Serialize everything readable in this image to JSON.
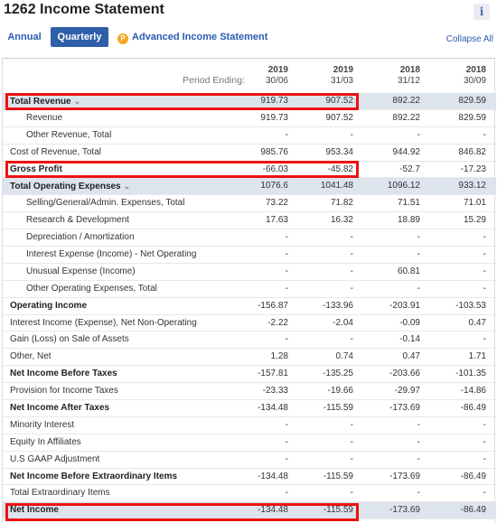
{
  "header": {
    "title": "1262 Income Statement",
    "info_label": "i"
  },
  "tabs": {
    "annual": "Annual",
    "quarterly": "Quarterly",
    "advanced": "Advanced Income Statement",
    "advanced_icon_glyph": "P",
    "collapse_all": "Collapse All"
  },
  "columns": {
    "period_label": "Period Ending:",
    "periods": [
      {
        "year": "2019",
        "date": "30/06"
      },
      {
        "year": "2019",
        "date": "31/03"
      },
      {
        "year": "2018",
        "date": "31/12"
      },
      {
        "year": "2018",
        "date": "30/09"
      }
    ]
  },
  "rows": [
    {
      "label": "Total Revenue",
      "values": [
        "919.73",
        "907.52",
        "892.22",
        "829.59"
      ],
      "style": "bold",
      "shaded": true,
      "expandable": true
    },
    {
      "label": "Revenue",
      "values": [
        "919.73",
        "907.52",
        "892.22",
        "829.59"
      ],
      "style": "indent"
    },
    {
      "label": "Other Revenue, Total",
      "values": [
        "-",
        "-",
        "-",
        "-"
      ],
      "style": "indent"
    },
    {
      "label": "Cost of Revenue, Total",
      "values": [
        "985.76",
        "953.34",
        "944.92",
        "846.82"
      ],
      "style": "normal"
    },
    {
      "label": "Gross Profit",
      "values": [
        "-66.03",
        "-45.82",
        "-52.7",
        "-17.23"
      ],
      "style": "bold"
    },
    {
      "label": "Total Operating Expenses",
      "values": [
        "1076.6",
        "1041.48",
        "1096.12",
        "933.12"
      ],
      "style": "bold",
      "shaded": true,
      "expandable": true
    },
    {
      "label": "Selling/General/Admin. Expenses, Total",
      "values": [
        "73.22",
        "71.82",
        "71.51",
        "71.01"
      ],
      "style": "indent"
    },
    {
      "label": "Research & Development",
      "values": [
        "17.63",
        "16.32",
        "18.89",
        "15.29"
      ],
      "style": "indent"
    },
    {
      "label": "Depreciation / Amortization",
      "values": [
        "-",
        "-",
        "-",
        "-"
      ],
      "style": "indent"
    },
    {
      "label": "Interest Expense (Income) - Net Operating",
      "values": [
        "-",
        "-",
        "-",
        "-"
      ],
      "style": "indent"
    },
    {
      "label": "Unusual Expense (Income)",
      "values": [
        "-",
        "-",
        "60.81",
        "-"
      ],
      "style": "indent"
    },
    {
      "label": "Other Operating Expenses, Total",
      "values": [
        "-",
        "-",
        "-",
        "-"
      ],
      "style": "indent"
    },
    {
      "label": "Operating Income",
      "values": [
        "-156.87",
        "-133.96",
        "-203.91",
        "-103.53"
      ],
      "style": "bold"
    },
    {
      "label": "Interest Income (Expense), Net Non-Operating",
      "values": [
        "-2.22",
        "-2.04",
        "-0.09",
        "0.47"
      ],
      "style": "normal"
    },
    {
      "label": "Gain (Loss) on Sale of Assets",
      "values": [
        "-",
        "-",
        "-0.14",
        "-"
      ],
      "style": "normal"
    },
    {
      "label": "Other, Net",
      "values": [
        "1.28",
        "0.74",
        "0.47",
        "1.71"
      ],
      "style": "normal"
    },
    {
      "label": "Net Income Before Taxes",
      "values": [
        "-157.81",
        "-135.25",
        "-203.66",
        "-101.35"
      ],
      "style": "bold"
    },
    {
      "label": "Provision for Income Taxes",
      "values": [
        "-23.33",
        "-19.66",
        "-29.97",
        "-14.86"
      ],
      "style": "normal"
    },
    {
      "label": "Net Income After Taxes",
      "values": [
        "-134.48",
        "-115.59",
        "-173.69",
        "-86.49"
      ],
      "style": "bold"
    },
    {
      "label": "Minority Interest",
      "values": [
        "-",
        "-",
        "-",
        "-"
      ],
      "style": "normal"
    },
    {
      "label": "Equity In Affiliates",
      "values": [
        "-",
        "-",
        "-",
        "-"
      ],
      "style": "normal"
    },
    {
      "label": "U.S GAAP Adjustment",
      "values": [
        "-",
        "-",
        "-",
        "-"
      ],
      "style": "normal"
    },
    {
      "label": "Net Income Before Extraordinary Items",
      "values": [
        "-134.48",
        "-115.59",
        "-173.69",
        "-86.49"
      ],
      "style": "bold"
    },
    {
      "label": "Total Extraordinary Items",
      "values": [
        "-",
        "-",
        "-",
        "-"
      ],
      "style": "normal"
    },
    {
      "label": "Net Income",
      "values": [
        "-134.48",
        "-115.59",
        "-173.69",
        "-86.49"
      ],
      "style": "bold",
      "shaded": true
    }
  ],
  "highlighted_rows": [
    "Total Revenue",
    "Gross Profit",
    "Net Income"
  ],
  "colors": {
    "highlight": "#ee1111",
    "accent": "#2e5fa8",
    "shaded_row": "#dde4ee"
  }
}
